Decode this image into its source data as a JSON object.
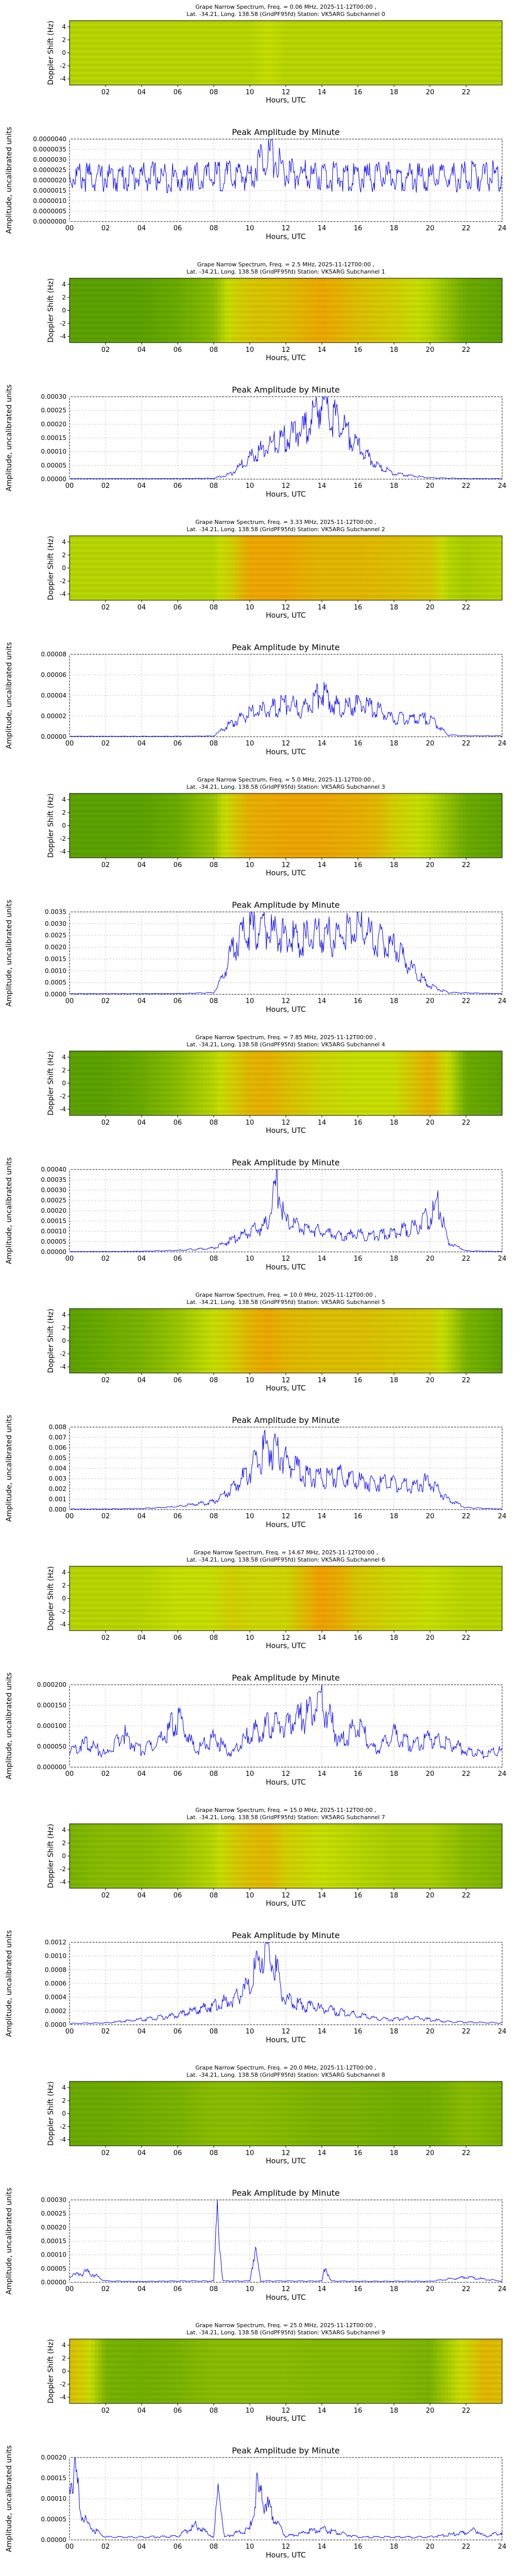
{
  "common": {
    "spec_line2": "Lat. -34.21, Long. 138.58 (GridPF95fd) Station: VK5ARG",
    "spec_ylabel": "Doppler Shift (Hz)",
    "spec_xlabel": "Hours, UTC",
    "spec_xticks": [
      "02",
      "04",
      "06",
      "08",
      "10",
      "12",
      "14",
      "16",
      "18",
      "20",
      "22"
    ],
    "spec_yticks": [
      "4",
      "2",
      "0",
      "-2",
      "-4"
    ],
    "amp_title": "Peak Amplitude by Minute",
    "amp_ylabel": "Amplitude, uncalibrated units",
    "amp_xlabel": "Hours, UTC",
    "amp_xticks": [
      "00",
      "02",
      "04",
      "06",
      "08",
      "10",
      "12",
      "14",
      "16",
      "18",
      "20",
      "22",
      "24"
    ]
  },
  "colors": {
    "line": "#0000ff",
    "spec_low": "#2f8a00",
    "spec_mid": "#c8e000",
    "spec_high": "#ff9000"
  },
  "chart_data": [
    {
      "type": "heatmap",
      "title": "Grape Narrow Spectrum, Freq. = 0.06 MHz, 2025-11-12T00:00 ,",
      "subchannel": "Subchannel 0",
      "xlabel": "Hours, UTC",
      "ylabel": "Doppler Shift (Hz)",
      "xlim": [
        0,
        24
      ],
      "ylim": [
        -5,
        5
      ],
      "intensity": {
        "hours": [
          0,
          2,
          4,
          6,
          8,
          10,
          11,
          12,
          14,
          16,
          18,
          20,
          22,
          24
        ],
        "level": [
          0.45,
          0.45,
          0.45,
          0.45,
          0.45,
          0.45,
          0.5,
          0.45,
          0.45,
          0.45,
          0.45,
          0.45,
          0.45,
          0.45
        ]
      }
    },
    {
      "type": "line",
      "title": "Peak Amplitude by Minute",
      "xlabel": "Hours, UTC",
      "ylabel": "Amplitude, uncalibrated units",
      "xlim": [
        0,
        24
      ],
      "ylim": [
        0,
        4e-06
      ],
      "yticks": [
        "0.0000000",
        "0.0000005",
        "0.0000010",
        "0.0000015",
        "0.0000020",
        "0.0000025",
        "0.0000030",
        "0.0000035",
        "0.0000040"
      ],
      "x": [
        0,
        2,
        4,
        6,
        8,
        10,
        11,
        12,
        14,
        16,
        18,
        20,
        22,
        24
      ],
      "y": [
        2.2e-06,
        2.1e-06,
        2.2e-06,
        2.1e-06,
        2.2e-06,
        2.2e-06,
        3.5e-06,
        2.3e-06,
        2.2e-06,
        2.1e-06,
        2.2e-06,
        2.1e-06,
        2.2e-06,
        2.2e-06
      ]
    },
    {
      "type": "heatmap",
      "title": "Grape Narrow Spectrum, Freq. = 2.5 MHz, 2025-11-12T00:00 ,",
      "subchannel": "Subchannel 1",
      "xlabel": "Hours, UTC",
      "ylabel": "Doppler Shift (Hz)",
      "xlim": [
        0,
        24
      ],
      "ylim": [
        -5,
        5
      ],
      "intensity": {
        "hours": [
          0,
          2,
          4,
          6,
          8,
          9,
          10,
          12,
          14,
          16,
          18,
          20,
          22,
          24
        ],
        "level": [
          0.15,
          0.15,
          0.15,
          0.2,
          0.3,
          0.55,
          0.65,
          0.7,
          0.85,
          0.7,
          0.6,
          0.45,
          0.2,
          0.15
        ]
      }
    },
    {
      "type": "line",
      "title": "Peak Amplitude by Minute",
      "xlabel": "Hours, UTC",
      "ylabel": "Amplitude, uncalibrated units",
      "xlim": [
        0,
        24
      ],
      "ylim": [
        0,
        0.0003
      ],
      "yticks": [
        "0.00000",
        "0.00005",
        "0.00010",
        "0.00015",
        "0.00020",
        "0.00025",
        "0.00030"
      ],
      "x": [
        0,
        2,
        4,
        6,
        8,
        9,
        10,
        11,
        12,
        13,
        14,
        15,
        16,
        17,
        18,
        20,
        22,
        24
      ],
      "y": [
        2e-06,
        2e-06,
        2e-06,
        2e-06,
        3e-06,
        2e-05,
        8e-05,
        0.00012,
        0.00015,
        0.00018,
        0.00028,
        0.0002,
        0.00012,
        5e-05,
        2e-05,
        5e-06,
        2e-06,
        2e-06
      ]
    },
    {
      "type": "heatmap",
      "title": "Grape Narrow Spectrum, Freq. = 3.33 MHz, 2025-11-12T00:00 ,",
      "subchannel": "Subchannel 2",
      "xlabel": "Hours, UTC",
      "ylabel": "Doppler Shift (Hz)",
      "xlim": [
        0,
        24
      ],
      "ylim": [
        -5,
        5
      ],
      "intensity": {
        "hours": [
          0,
          2,
          4,
          6,
          8,
          9,
          10,
          12,
          14,
          16,
          18,
          20,
          21,
          22,
          24
        ],
        "level": [
          0.45,
          0.45,
          0.45,
          0.45,
          0.45,
          0.6,
          0.85,
          0.85,
          0.75,
          0.75,
          0.7,
          0.65,
          0.45,
          0.4,
          0.45
        ]
      }
    },
    {
      "type": "line",
      "title": "Peak Amplitude by Minute",
      "xlabel": "Hours, UTC",
      "ylabel": "Amplitude, uncalibrated units",
      "xlim": [
        0,
        24
      ],
      "ylim": [
        0,
        9e-05
      ],
      "yticks": [
        "0.00000",
        "0.00002",
        "0.00004",
        "0.00006",
        "0.00008"
      ],
      "x": [
        0,
        2,
        4,
        6,
        8,
        9,
        10,
        11,
        12,
        13,
        14,
        15,
        16,
        17,
        18,
        20,
        21,
        22,
        24
      ],
      "y": [
        5e-07,
        5e-07,
        5e-07,
        5e-07,
        8e-07,
        1.5e-05,
        2.5e-05,
        3e-05,
        3.5e-05,
        3e-05,
        5e-05,
        3e-05,
        3.5e-05,
        3e-05,
        2e-05,
        2e-05,
        2e-06,
        1e-06,
        1e-06
      ]
    },
    {
      "type": "heatmap",
      "title": "Grape Narrow Spectrum, Freq. = 5.0 MHz, 2025-11-12T00:00 ,",
      "subchannel": "Subchannel 3",
      "xlabel": "Hours, UTC",
      "ylabel": "Doppler Shift (Hz)",
      "xlim": [
        0,
        24
      ],
      "ylim": [
        -5,
        5
      ],
      "intensity": {
        "hours": [
          0,
          2,
          4,
          6,
          8,
          9,
          10,
          12,
          14,
          16,
          17,
          18,
          20,
          22,
          24
        ],
        "level": [
          0.15,
          0.15,
          0.15,
          0.2,
          0.35,
          0.6,
          0.8,
          0.85,
          0.85,
          0.8,
          0.75,
          0.6,
          0.45,
          0.2,
          0.15
        ]
      }
    },
    {
      "type": "line",
      "title": "Peak Amplitude by Minute",
      "xlabel": "Hours, UTC",
      "ylabel": "Amplitude, uncalibrated units",
      "xlim": [
        0,
        24
      ],
      "ylim": [
        0,
        0.0038
      ],
      "yticks": [
        "0.0000",
        "0.0005",
        "0.0010",
        "0.0015",
        "0.0020",
        "0.0025",
        "0.0030",
        "0.0035"
      ],
      "x": [
        0,
        2,
        4,
        6,
        8,
        8.5,
        9,
        9.5,
        10,
        11,
        12,
        13,
        14,
        15,
        16,
        17,
        18,
        19,
        20,
        21,
        24
      ],
      "y": [
        3e-05,
        3e-05,
        3e-05,
        3e-05,
        8e-05,
        0.0008,
        0.002,
        0.0028,
        0.0029,
        0.003,
        0.0026,
        0.0025,
        0.0027,
        0.0026,
        0.0032,
        0.0025,
        0.0022,
        0.0012,
        0.0004,
        8e-05,
        3e-05
      ]
    },
    {
      "type": "heatmap",
      "title": "Grape Narrow Spectrum, Freq. = 7.85 MHz, 2025-11-12T00:00 ,",
      "subchannel": "Subchannel 4",
      "xlabel": "Hours, UTC",
      "ylabel": "Doppler Shift (Hz)",
      "xlim": [
        0,
        24
      ],
      "ylim": [
        -5,
        5
      ],
      "intensity": {
        "hours": [
          0,
          2,
          4,
          6,
          8,
          9,
          10,
          11,
          12,
          14,
          16,
          18,
          20,
          21,
          22,
          24
        ],
        "level": [
          0.15,
          0.15,
          0.2,
          0.3,
          0.45,
          0.6,
          0.75,
          0.8,
          0.7,
          0.55,
          0.5,
          0.5,
          0.8,
          0.5,
          0.2,
          0.15
        ]
      }
    },
    {
      "type": "line",
      "title": "Peak Amplitude by Minute",
      "xlabel": "Hours, UTC",
      "ylabel": "Amplitude, uncalibrated units",
      "xlim": [
        0,
        24
      ],
      "ylim": [
        0,
        0.00042
      ],
      "yticks": [
        "0.00000",
        "0.00005",
        "0.00010",
        "0.00015",
        "0.00020",
        "0.00025",
        "0.00030",
        "0.00035",
        "0.00040"
      ],
      "x": [
        0,
        2,
        4,
        6,
        8,
        9,
        10,
        11,
        11.5,
        12,
        13,
        14,
        15,
        16,
        17,
        18,
        19,
        20,
        20.5,
        21,
        22,
        24
      ],
      "y": [
        2e-06,
        2e-06,
        3e-06,
        8e-06,
        2e-05,
        6e-05,
        0.0001,
        0.00014,
        0.00035,
        0.00015,
        0.00012,
        0.0001,
        8e-05,
        9e-05,
        8e-05,
        0.0001,
        0.00012,
        0.00018,
        0.00024,
        5e-05,
        5e-06,
        2e-06
      ]
    },
    {
      "type": "heatmap",
      "title": "Grape Narrow Spectrum, Freq. = 10.0 MHz, 2025-11-12T00:00 ,",
      "subchannel": "Subchannel 5",
      "xlabel": "Hours, UTC",
      "ylabel": "Doppler Shift (Hz)",
      "xlim": [
        0,
        24
      ],
      "ylim": [
        -5,
        5
      ],
      "intensity": {
        "hours": [
          0,
          2,
          4,
          6,
          8,
          9,
          10,
          11,
          12,
          14,
          16,
          18,
          20,
          21,
          22,
          24
        ],
        "level": [
          0.15,
          0.2,
          0.25,
          0.35,
          0.5,
          0.6,
          0.75,
          0.85,
          0.75,
          0.7,
          0.7,
          0.65,
          0.6,
          0.45,
          0.25,
          0.15
        ]
      }
    },
    {
      "type": "line",
      "title": "Peak Amplitude by Minute",
      "xlabel": "Hours, UTC",
      "ylabel": "Amplitude, uncalibrated units",
      "xlim": [
        0,
        24
      ],
      "ylim": [
        0,
        0.0085
      ],
      "yticks": [
        "0.000",
        "0.001",
        "0.002",
        "0.003",
        "0.004",
        "0.005",
        "0.006",
        "0.007",
        "0.008"
      ],
      "x": [
        0,
        2,
        4,
        6,
        8,
        9,
        10,
        11,
        12,
        13,
        14,
        15,
        16,
        17,
        18,
        19,
        20,
        21,
        22,
        24
      ],
      "y": [
        5e-05,
        5e-05,
        0.0001,
        0.0003,
        0.0008,
        0.002,
        0.004,
        0.0065,
        0.005,
        0.0035,
        0.0032,
        0.0035,
        0.003,
        0.0028,
        0.0026,
        0.0024,
        0.003,
        0.001,
        0.0002,
        5e-05
      ]
    },
    {
      "type": "heatmap",
      "title": "Grape Narrow Spectrum, Freq. = 14.67 MHz, 2025-11-12T00:00 ,",
      "subchannel": "Subchannel 6",
      "xlabel": "Hours, UTC",
      "ylabel": "Doppler Shift (Hz)",
      "xlim": [
        0,
        24
      ],
      "ylim": [
        -5,
        5
      ],
      "intensity": {
        "hours": [
          0,
          2,
          4,
          6,
          8,
          9,
          10,
          12,
          14,
          15,
          16,
          18,
          20,
          22,
          24
        ],
        "level": [
          0.45,
          0.45,
          0.45,
          0.5,
          0.5,
          0.6,
          0.55,
          0.55,
          0.9,
          0.8,
          0.65,
          0.55,
          0.5,
          0.45,
          0.45
        ]
      }
    },
    {
      "type": "line",
      "title": "Peak Amplitude by Minute",
      "xlabel": "Hours, UTC",
      "ylabel": "Amplitude, uncalibrated units",
      "xlim": [
        0,
        24
      ],
      "ylim": [
        0,
        0.0002
      ],
      "yticks": [
        "0.000000",
        "0.000050",
        "0.000100",
        "0.000150",
        "0.000200"
      ],
      "x": [
        0,
        1,
        2,
        3,
        4,
        5,
        6,
        7,
        8,
        9,
        10,
        11,
        12,
        13,
        14,
        15,
        16,
        17,
        18,
        19,
        20,
        21,
        22,
        23,
        24
      ],
      "y": [
        4e-05,
        6e-05,
        3e-05,
        8e-05,
        4e-05,
        6e-05,
        0.00012,
        4e-05,
        7e-05,
        3e-05,
        8e-05,
        0.0001,
        0.0001,
        0.00012,
        0.00016,
        6e-05,
        0.0001,
        4e-05,
        8e-05,
        5e-05,
        7e-05,
        6e-05,
        4e-05,
        3e-05,
        4e-05
      ]
    },
    {
      "type": "heatmap",
      "title": "Grape Narrow Spectrum, Freq. = 15.0 MHz, 2025-11-12T00:00 ,",
      "subchannel": "Subchannel 7",
      "xlabel": "Hours, UTC",
      "ylabel": "Doppler Shift (Hz)",
      "xlim": [
        0,
        24
      ],
      "ylim": [
        -5,
        5
      ],
      "intensity": {
        "hours": [
          0,
          2,
          4,
          6,
          8,
          9,
          10,
          11,
          12,
          14,
          16,
          18,
          20,
          22,
          24
        ],
        "level": [
          0.25,
          0.3,
          0.3,
          0.35,
          0.45,
          0.6,
          0.7,
          0.75,
          0.6,
          0.5,
          0.45,
          0.4,
          0.4,
          0.3,
          0.25
        ]
      }
    },
    {
      "type": "line",
      "title": "Peak Amplitude by Minute",
      "xlabel": "Hours, UTC",
      "ylabel": "Amplitude, uncalibrated units",
      "xlim": [
        0,
        24
      ],
      "ylim": [
        0,
        0.0013
      ],
      "yticks": [
        "0.0000",
        "0.0002",
        "0.0004",
        "0.0006",
        "0.0008",
        "0.0010",
        "0.0012"
      ],
      "x": [
        0,
        2,
        4,
        6,
        8,
        9,
        10,
        10.5,
        11,
        11.5,
        12,
        13,
        14,
        15,
        16,
        17,
        18,
        19,
        20,
        21,
        22,
        24
      ],
      "y": [
        2e-05,
        3e-05,
        8e-05,
        0.00015,
        0.0003,
        0.0004,
        0.0006,
        0.001,
        0.0012,
        0.0008,
        0.0004,
        0.0003,
        0.00025,
        0.0002,
        0.00015,
        0.0001,
        8e-05,
        0.00012,
        8e-05,
        5e-05,
        4e-05,
        3e-05
      ]
    },
    {
      "type": "heatmap",
      "title": "Grape Narrow Spectrum, Freq. = 20.0 MHz, 2025-11-12T00:00 ,",
      "subchannel": "Subchannel 8",
      "xlabel": "Hours, UTC",
      "ylabel": "Doppler Shift (Hz)",
      "xlim": [
        0,
        24
      ],
      "ylim": [
        -5,
        5
      ],
      "intensity": {
        "hours": [
          0,
          2,
          4,
          6,
          8,
          10,
          12,
          14,
          16,
          18,
          20,
          22,
          24
        ],
        "level": [
          0.2,
          0.2,
          0.22,
          0.25,
          0.3,
          0.3,
          0.28,
          0.25,
          0.25,
          0.22,
          0.22,
          0.3,
          0.25
        ]
      }
    },
    {
      "type": "line",
      "title": "Peak Amplitude by Minute",
      "xlabel": "Hours, UTC",
      "ylabel": "Amplitude, uncalibrated units",
      "xlim": [
        0,
        24
      ],
      "ylim": [
        0,
        0.00031
      ],
      "yticks": [
        "0.00000",
        "0.00005",
        "0.00010",
        "0.00015",
        "0.00020",
        "0.00025",
        "0.00030"
      ],
      "x": [
        0,
        1,
        2,
        4,
        6,
        8,
        8.2,
        8.5,
        10,
        10.3,
        10.6,
        12,
        14,
        14.2,
        14.5,
        16,
        18,
        20,
        22,
        24
      ],
      "y": [
        2e-05,
        4e-05,
        5e-06,
        3e-06,
        5e-06,
        5e-06,
        0.00029,
        5e-06,
        5e-06,
        0.00013,
        5e-06,
        5e-06,
        5e-06,
        6e-05,
        5e-06,
        4e-06,
        4e-06,
        4e-06,
        2e-05,
        4e-06
      ]
    },
    {
      "type": "heatmap",
      "title": "Grape Narrow Spectrum, Freq. = 25.0 MHz, 2025-11-12T00:00 ,",
      "subchannel": "Subchannel 9",
      "xlabel": "Hours, UTC",
      "ylabel": "Doppler Shift (Hz)",
      "xlim": [
        0,
        24
      ],
      "ylim": [
        -5,
        5
      ],
      "intensity": {
        "hours": [
          0,
          1,
          2,
          4,
          6,
          8,
          10,
          12,
          14,
          16,
          18,
          20,
          22,
          23,
          24
        ],
        "level": [
          0.7,
          0.55,
          0.25,
          0.22,
          0.25,
          0.3,
          0.3,
          0.3,
          0.28,
          0.28,
          0.28,
          0.25,
          0.55,
          0.75,
          0.7
        ]
      }
    },
    {
      "type": "line",
      "title": "Peak Amplitude by Minute",
      "xlabel": "Hours, UTC",
      "ylabel": "Amplitude, uncalibrated units",
      "xlim": [
        0,
        24
      ],
      "ylim": [
        0,
        0.00023
      ],
      "yticks": [
        "0.00000",
        "0.00005",
        "0.00010",
        "0.00015",
        "0.00020"
      ],
      "x": [
        0,
        0.3,
        0.6,
        1,
        2,
        4,
        6,
        7,
        8,
        8.3,
        8.6,
        10,
        10.4,
        12,
        14,
        16,
        18,
        20,
        22,
        22.5,
        23,
        24
      ],
      "y": [
        0.00015,
        0.00021,
        8e-05,
        4e-05,
        8e-06,
        8e-06,
        1e-05,
        4e-05,
        8e-06,
        0.00016,
        8e-06,
        3e-05,
        0.00014,
        1e-05,
        3e-05,
        8e-06,
        8e-06,
        8e-06,
        2e-05,
        3e-05,
        1e-05,
        2e-05
      ]
    }
  ]
}
